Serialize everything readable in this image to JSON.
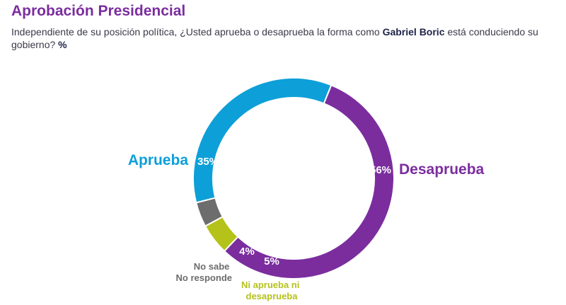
{
  "title": "Aprobación Presidencial",
  "subtitle": {
    "before": "Independiente de su posición política, ¿Usted aprueba o desaprueba la forma como ",
    "name": "Gabriel Boric",
    "after": " está conduciendo su gobierno? ",
    "unit": "%"
  },
  "chart_data": {
    "type": "pie",
    "title": "Aprobación Presidencial",
    "donut": true,
    "slices": [
      {
        "name": "Desaprueba",
        "value": 56,
        "label": "56%",
        "color": "#7b2d9e"
      },
      {
        "name": "Ni aprueba ni desaprueba",
        "label_lines": [
          "Ni aprueba ni",
          "desaprueba"
        ],
        "value": 5,
        "label": "5%",
        "color": "#b5c21a"
      },
      {
        "name": "No sabe No responde",
        "label_lines": [
          "No sabe",
          "No responde"
        ],
        "value": 4,
        "label": "4%",
        "color": "#6d6d6d"
      },
      {
        "name": "Aprueba",
        "value": 35,
        "label": "35%",
        "color": "#0d9fd8"
      }
    ]
  }
}
